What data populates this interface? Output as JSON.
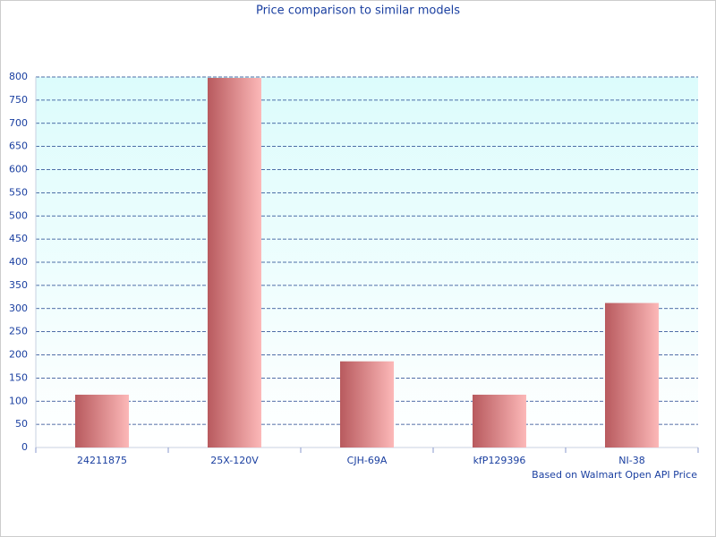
{
  "chart_data": {
    "type": "bar",
    "title": "Price comparison to similar models",
    "footnote": "Based on Walmart Open API Price",
    "categories": [
      "24211875",
      "25X-120V",
      "CJH-69A",
      "kfP129396",
      "NI-38"
    ],
    "values": [
      114,
      798,
      186,
      114,
      312
    ],
    "color": "#c0585c",
    "ylim": [
      0,
      800
    ],
    "yticks": [
      0,
      50,
      100,
      150,
      200,
      250,
      300,
      350,
      400,
      450,
      500,
      550,
      600,
      650,
      700,
      750,
      800
    ],
    "grid": true
  }
}
